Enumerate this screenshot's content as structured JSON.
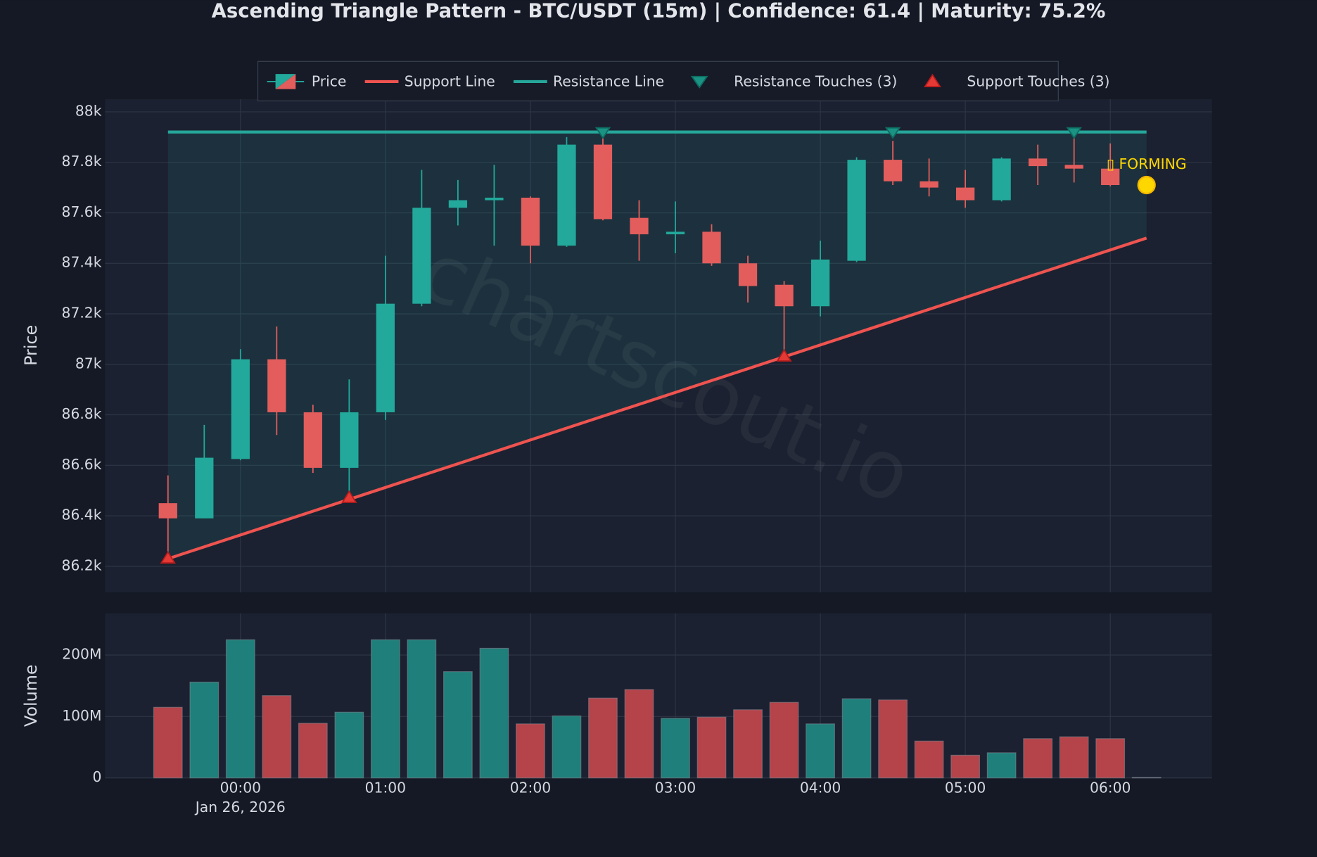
{
  "chart_data": [
    {
      "type": "candlestick",
      "title": "Ascending Triangle Pattern - BTC/USDT (15m) | Confidence: 61.4 | Maturity: 75.2%",
      "name": "Price",
      "ylabel": "Price",
      "watermark": "chartscout.io",
      "categories": [
        "23:30",
        "23:45",
        "00:00",
        "00:15",
        "00:30",
        "00:45",
        "01:00",
        "01:15",
        "01:30",
        "01:45",
        "02:00",
        "02:15",
        "02:30",
        "02:45",
        "03:00",
        "03:15",
        "03:30",
        "03:45",
        "04:00",
        "04:15",
        "04:30",
        "04:45",
        "05:00",
        "05:15",
        "05:30",
        "05:45",
        "06:00",
        "06:15"
      ],
      "open": [
        86450,
        86390,
        86625,
        87020,
        86810,
        86590,
        86810,
        87240,
        87620,
        87650,
        87660,
        87470,
        87870,
        87580,
        87515,
        87525,
        87400,
        87315,
        87230,
        87410,
        87810,
        87725,
        87700,
        87650,
        87815,
        87790,
        87775,
        null
      ],
      "high": [
        86560,
        86760,
        87060,
        87150,
        86840,
        86940,
        87430,
        87770,
        87730,
        87790,
        87665,
        87900,
        87920,
        87650,
        87645,
        87555,
        87430,
        87330,
        87490,
        87820,
        87885,
        87815,
        87770,
        87820,
        87870,
        87925,
        87875,
        null
      ],
      "low": [
        86230,
        86390,
        86620,
        86720,
        86570,
        86480,
        86780,
        87230,
        87550,
        87470,
        87400,
        87465,
        87570,
        87410,
        87440,
        87390,
        87245,
        87030,
        87190,
        87405,
        87710,
        87665,
        87620,
        87645,
        87710,
        87720,
        87705,
        null
      ],
      "close": [
        86390,
        86630,
        87020,
        86810,
        86590,
        86810,
        87240,
        87620,
        87650,
        87660,
        87470,
        87870,
        87575,
        87515,
        87525,
        87400,
        87310,
        87230,
        87415,
        87810,
        87725,
        87700,
        87650,
        87815,
        87785,
        87775,
        87710,
        null
      ],
      "up_color": "#22a99b",
      "down_color": "#e35d5d",
      "ylim": [
        86097,
        88050
      ],
      "yticks": [
        {
          "value": 86200,
          "label": "86.2k"
        },
        {
          "value": 86400,
          "label": "86.4k"
        },
        {
          "value": 86600,
          "label": "86.6k"
        },
        {
          "value": 86800,
          "label": "86.8k"
        },
        {
          "value": 87000,
          "label": "87k"
        },
        {
          "value": 87200,
          "label": "87.2k"
        },
        {
          "value": 87400,
          "label": "87.4k"
        },
        {
          "value": 87600,
          "label": "87.6k"
        },
        {
          "value": 87800,
          "label": "87.8k"
        },
        {
          "value": 88000,
          "label": "88k"
        }
      ],
      "xticks": [
        "00:00",
        "01:00",
        "02:00",
        "03:00",
        "04:00",
        "05:00",
        "06:00"
      ],
      "xdate": "Jan 26, 2026",
      "grid": true,
      "series": [
        {
          "name": "Support Line",
          "kind": "line",
          "color": "#ef5350",
          "x": [
            "23:30",
            "06:15"
          ],
          "values": [
            86230,
            87500
          ]
        },
        {
          "name": "Resistance Line",
          "kind": "line",
          "color": "#26a69a",
          "x": [
            "23:30",
            "06:15"
          ],
          "values": [
            87920,
            87920
          ]
        },
        {
          "name": "Resistance Touches (3)",
          "kind": "triangle-down",
          "color": "#1a9384",
          "x": [
            "02:30",
            "04:30",
            "05:45"
          ],
          "values": [
            87920,
            87920,
            87920
          ]
        },
        {
          "name": "Support Touches (3)",
          "kind": "triangle-up",
          "color": "#e53935",
          "x": [
            "23:30",
            "00:45",
            "03:45"
          ],
          "values": [
            86230,
            86470,
            87030
          ]
        }
      ],
      "annotation": {
        "text": "▯ FORMING",
        "x": "06:15",
        "y": 87710,
        "color": "#ffd700"
      }
    },
    {
      "type": "bar",
      "ylabel": "Volume",
      "categories": [
        "23:30",
        "23:45",
        "00:00",
        "00:15",
        "00:30",
        "00:45",
        "01:00",
        "01:15",
        "01:30",
        "01:45",
        "02:00",
        "02:15",
        "02:30",
        "02:45",
        "03:00",
        "03:15",
        "03:30",
        "03:45",
        "04:00",
        "04:15",
        "04:30",
        "04:45",
        "05:00",
        "05:15",
        "05:30",
        "05:45",
        "06:00",
        "06:15"
      ],
      "values": [
        115000000,
        156000000,
        225000000,
        134000000,
        89000000,
        107000000,
        225000000,
        225000000,
        173000000,
        211000000,
        88000000,
        101000000,
        130000000,
        144000000,
        97000000,
        99000000,
        111000000,
        123000000,
        88000000,
        129000000,
        127000000,
        60000000,
        37000000,
        41000000,
        64000000,
        67000000,
        64000000,
        1000000
      ],
      "colors": [
        "#b5434a",
        "#1f7f7a",
        "#1f7f7a",
        "#b5434a",
        "#b5434a",
        "#1f7f7a",
        "#1f7f7a",
        "#1f7f7a",
        "#1f7f7a",
        "#1f7f7a",
        "#b5434a",
        "#1f7f7a",
        "#b5434a",
        "#b5434a",
        "#1f7f7a",
        "#b5434a",
        "#b5434a",
        "#b5434a",
        "#1f7f7a",
        "#1f7f7a",
        "#b5434a",
        "#b5434a",
        "#b5434a",
        "#1f7f7a",
        "#b5434a",
        "#b5434a",
        "#b5434a",
        "#555c6b"
      ],
      "ylim": [
        0,
        268000000
      ],
      "yticks": [
        0,
        {
          "value": 100000000,
          "label": "100M"
        },
        {
          "value": 200000000,
          "label": "200M"
        }
      ],
      "grid": true
    }
  ]
}
